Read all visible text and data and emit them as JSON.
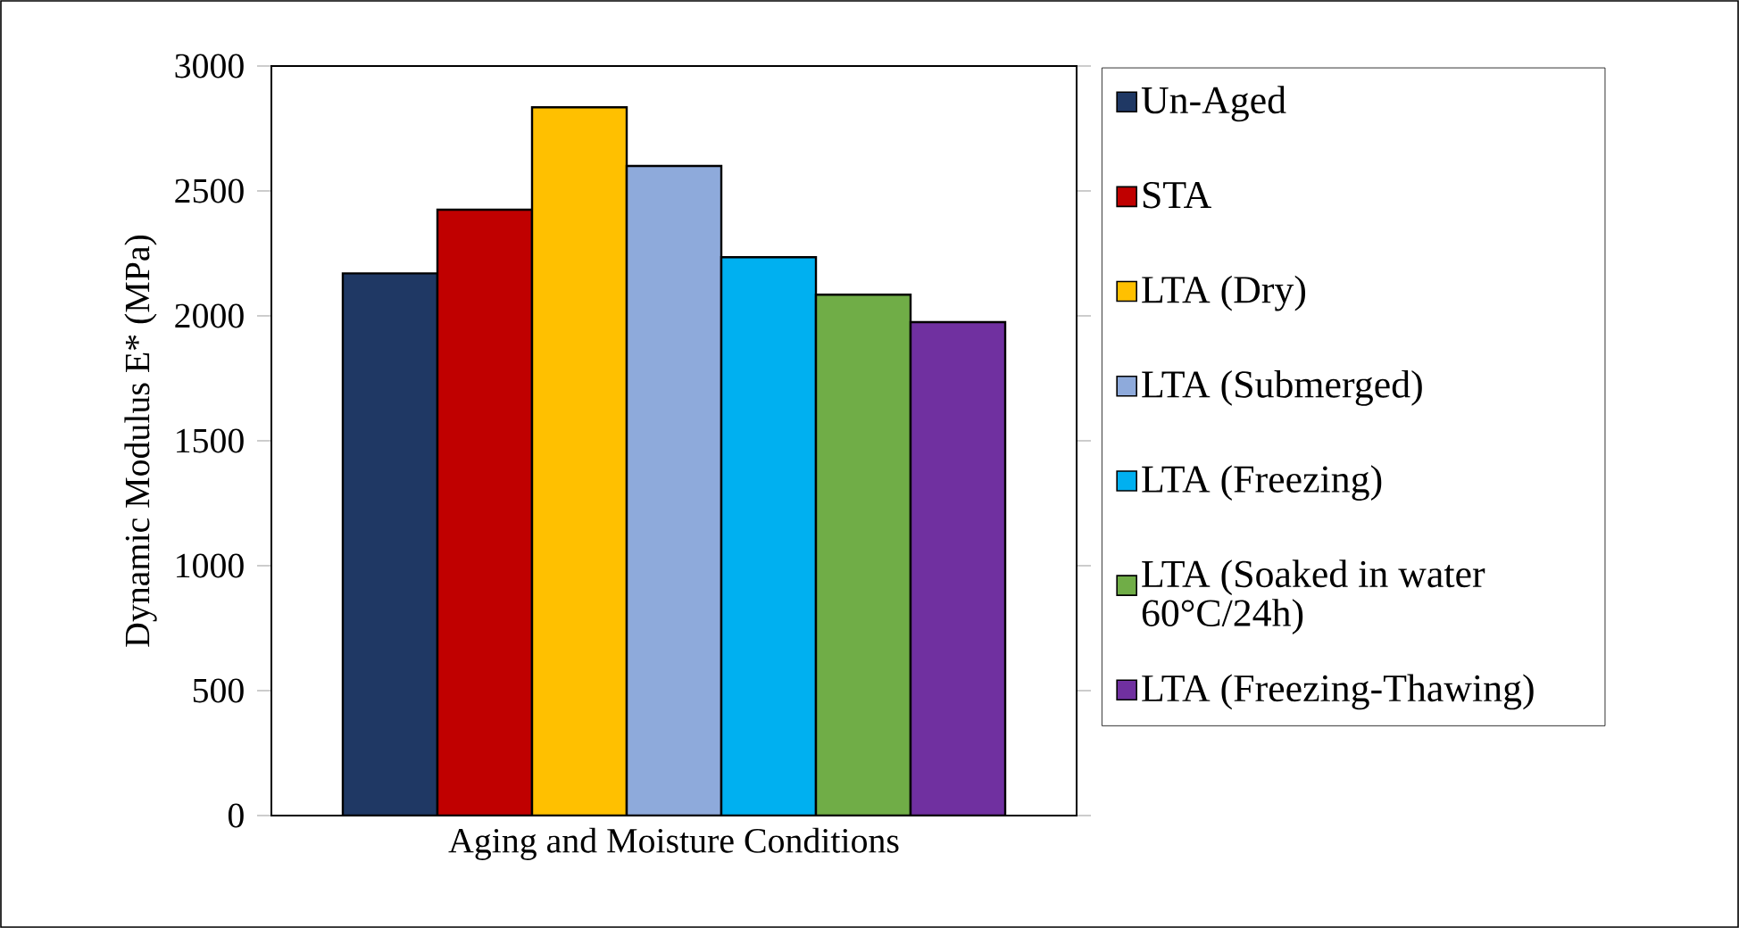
{
  "chart_data": {
    "type": "bar",
    "xlabel": "Aging and Moisture Conditions",
    "ylabel": "Dynamic Modulus E* (MPa)",
    "categories": [
      null
    ],
    "series": [
      {
        "name": "Un-Aged",
        "color": "#1f3864",
        "values": [
          2170
        ]
      },
      {
        "name": "STA",
        "color": "#c00000",
        "values": [
          2425
        ]
      },
      {
        "name": "LTA (Dry)",
        "color": "#ffc000",
        "values": [
          2835
        ]
      },
      {
        "name": "LTA (Submerged)",
        "color": "#8eaadb",
        "values": [
          2600
        ]
      },
      {
        "name": "LTA (Freezing)",
        "color": "#00b0f0",
        "values": [
          2235
        ]
      },
      {
        "name": "LTA (Soaked in water 60°C/24h)",
        "color": "#70ad47",
        "values": [
          2085
        ]
      },
      {
        "name": "LTA (Freezing-Thawing)",
        "color": "#7030a0",
        "values": [
          1975
        ]
      }
    ],
    "ylim": [
      0,
      3000
    ],
    "yticks": [
      0,
      500,
      1000,
      1500,
      2000,
      2500,
      3000
    ],
    "grid": false,
    "legend": "right"
  }
}
